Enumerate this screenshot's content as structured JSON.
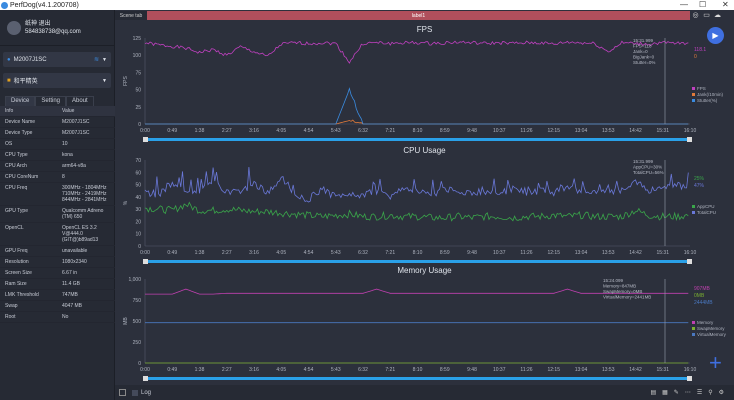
{
  "window": {
    "title": "PerfDog(v4.1.200708)",
    "minimize": "—",
    "maximize": "☐",
    "close": "✕"
  },
  "user": {
    "name": "纸神 退出",
    "email": "584838738@qq.com"
  },
  "device_select": {
    "value": "M2007J1SC"
  },
  "app_select": {
    "value": "和平精英"
  },
  "tabs": [
    "Device",
    "Setting",
    "About"
  ],
  "info_header": {
    "key": "Info",
    "value": "Value"
  },
  "info_rows": [
    {
      "key": "Device Name",
      "value": "M2007J1SC"
    },
    {
      "key": "Device Type",
      "value": "M2007J1SC"
    },
    {
      "key": "OS",
      "value": "10"
    },
    {
      "key": "CPU Type",
      "value": "kona"
    },
    {
      "key": "CPU Arch",
      "value": "arm64-v8a"
    },
    {
      "key": "CPU CoreNum",
      "value": "8"
    },
    {
      "key": "CPU Freq",
      "value": "300MHz - 1804MHz 710MHz - 2419MHz 844MHz - 2841MHz"
    },
    {
      "key": "GPU Type",
      "value": "Qualcomm Adreno (TM) 650"
    },
    {
      "key": "OpenCL",
      "value": "OpenCL ES 3.2 V@444.0 (GIT@)b89ad13"
    },
    {
      "key": "GPU Freq",
      "value": "unavailable"
    },
    {
      "key": "Resolution",
      "value": "1080x2340"
    },
    {
      "key": "Screen Size",
      "value": "6.67 in"
    },
    {
      "key": "Ram Size",
      "value": "11.4 GB"
    },
    {
      "key": "LMK Threshold",
      "value": "747MB"
    },
    {
      "key": "Swap",
      "value": "4047 MB"
    },
    {
      "key": "Root",
      "value": "No"
    }
  ],
  "scene": {
    "tab_label": "Scene tab",
    "label": "label1"
  },
  "bottom": {
    "log_label": "Log"
  },
  "colors": {
    "accent": "#3f6fe0",
    "fps": "#c040c0",
    "jank": "#e07a3a",
    "stutter": "#3a8be0",
    "app_cpu": "#3aa64a",
    "total_cpu": "#6a78d8",
    "memory": "#c040b0",
    "swap": "#7ab030",
    "virtual": "#4a78c0"
  },
  "chart_data": [
    {
      "type": "line",
      "title": "FPS",
      "ylabel": "FPS",
      "ylim": [
        0,
        125
      ],
      "yticks": [
        "0",
        "25",
        "50",
        "75",
        "100",
        "125"
      ],
      "xticks": [
        "0:00",
        "0:49",
        "1:38",
        "2:27",
        "3:16",
        "4:05",
        "4:54",
        "5:43",
        "6:32",
        "7:21",
        "8:10",
        "8:59",
        "9:48",
        "10:37",
        "11:26",
        "12:15",
        "13:04",
        "13:53",
        "14:42",
        "15:31",
        "16:10"
      ],
      "series": [
        {
          "name": "FPS",
          "values": [
            118,
            115,
            113,
            110,
            104,
            108,
            100,
            112,
            105,
            98,
            116,
            118,
            117,
            118,
            117,
            90,
            117,
            118,
            117,
            118,
            118,
            117,
            118,
            119,
            118,
            117,
            118,
            117,
            118,
            118,
            116,
            119,
            118,
            117,
            105,
            118,
            117,
            116,
            118,
            117,
            118
          ]
        },
        {
          "name": "Jank(/10min)",
          "values": [
            0,
            0,
            0,
            0,
            0,
            0,
            0,
            0,
            0,
            0,
            0,
            0,
            0,
            0,
            0,
            5,
            0,
            0,
            0,
            0,
            0,
            0,
            0,
            0,
            0,
            0,
            0,
            0,
            0,
            0,
            0,
            0,
            0,
            0,
            0,
            0,
            0,
            0,
            0,
            0,
            0
          ]
        },
        {
          "name": "Stutter(%)",
          "values": [
            0,
            0,
            0,
            0,
            0,
            0,
            0,
            0,
            0,
            0,
            0,
            0,
            0,
            0,
            0,
            50,
            0,
            0,
            0,
            0,
            0,
            0,
            0,
            0,
            0,
            0,
            0,
            0,
            0,
            0,
            0,
            0,
            0,
            0,
            0,
            0,
            0,
            0,
            0,
            0,
            0
          ]
        }
      ],
      "tooltip": [
        "15:31.999",
        "FPS=118",
        "Jank=0",
        "BigJank=0",
        "Stutter=0%"
      ],
      "current": [
        "118.1",
        "0"
      ]
    },
    {
      "type": "line",
      "title": "CPU Usage",
      "ylabel": "%",
      "ylim": [
        0,
        70
      ],
      "yticks": [
        "0",
        "10",
        "20",
        "30",
        "40",
        "50",
        "60",
        "70"
      ],
      "series": [
        {
          "name": "AppCPU",
          "values": [
            31,
            30,
            29,
            34,
            29,
            29,
            30,
            29,
            28,
            28,
            27,
            26,
            25,
            24,
            25,
            26,
            24,
            24,
            25,
            24,
            24,
            23,
            23,
            24,
            23,
            24,
            24,
            23,
            24,
            24,
            25,
            24,
            25,
            24,
            24,
            24,
            29,
            25,
            24,
            24,
            25
          ]
        },
        {
          "name": "TotalCPU",
          "values": [
            44,
            42,
            50,
            43,
            43,
            55,
            44,
            45,
            50,
            44,
            56,
            43,
            38,
            46,
            40,
            42,
            41,
            45,
            40,
            48,
            44,
            42,
            46,
            44,
            43,
            45,
            42,
            47,
            44,
            45,
            43,
            48,
            44,
            46,
            44,
            45,
            54,
            45,
            46,
            50,
            47
          ]
        }
      ],
      "tooltip": [
        "15:31.999",
        "AppCPU=30%",
        "TotalCPU=56%"
      ],
      "current": [
        "25%",
        "47%"
      ]
    },
    {
      "type": "line",
      "title": "Memory Usage",
      "ylabel": "MB",
      "ylim": [
        0,
        1000
      ],
      "yticks": [
        "0",
        "250",
        "500",
        "750",
        "1,000"
      ],
      "series": [
        {
          "name": "Memory",
          "values": [
            820,
            820,
            820,
            880,
            820,
            820,
            830,
            830,
            830,
            830,
            830,
            830,
            830,
            830,
            830,
            830,
            830,
            880,
            830,
            830,
            830,
            830,
            830,
            830,
            830,
            830,
            830,
            830,
            830,
            830,
            830,
            880,
            830,
            830,
            830,
            830,
            830,
            830,
            830,
            830,
            830
          ]
        },
        {
          "name": "SwapMemory",
          "values": [
            0,
            0,
            0,
            0,
            0,
            0,
            0,
            0,
            0,
            0,
            0,
            0,
            0,
            0,
            0,
            0,
            0,
            0,
            0,
            0,
            0,
            0,
            0,
            0,
            0,
            0,
            0,
            0,
            0,
            0,
            0,
            0,
            0,
            0,
            0,
            0,
            0,
            0,
            0,
            0,
            0
          ]
        },
        {
          "name": "VirtualMemory",
          "values": [
            480,
            480,
            480,
            480,
            480,
            480,
            480,
            480,
            480,
            480,
            480,
            480,
            480,
            480,
            480,
            480,
            480,
            480,
            480,
            480,
            480,
            480,
            480,
            480,
            480,
            480,
            480,
            480,
            480,
            480,
            480,
            480,
            480,
            480,
            480,
            480,
            480,
            480,
            480,
            480,
            480
          ]
        }
      ],
      "tooltip": [
        "15:24.099",
        "Memory=847MB",
        "SwapMemory=0MB",
        "VirtualMemory=2441MB"
      ],
      "current": [
        "907MB",
        "0MB",
        "2444MB"
      ]
    }
  ]
}
